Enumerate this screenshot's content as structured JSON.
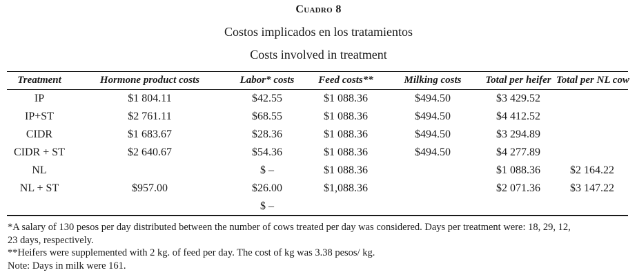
{
  "label": "Cuadro 8",
  "title_es": "Costos implicados en los tratamientos",
  "title_en": "Costs involved in treatment",
  "table": {
    "headers": [
      "Treatment",
      "Hormone product costs",
      "Labor* costs",
      "Feed costs**",
      "Milking costs",
      "Total per heifer",
      "Total per NL cow"
    ],
    "rows": [
      [
        "IP",
        "$1 804.11",
        "$42.55",
        "$1 088.36",
        "$494.50",
        "$3 429.52",
        ""
      ],
      [
        "IP+ST",
        "$2 761.11",
        "$68.55",
        "$1 088.36",
        "$494.50",
        "$4 412.52",
        ""
      ],
      [
        "CIDR",
        "$1 683.67",
        "$28.36",
        "$1 088.36",
        "$494.50",
        "$3 294.89",
        ""
      ],
      [
        "CIDR + ST",
        "$2 640.67",
        "$54.36",
        "$1 088.36",
        "$494.50",
        "$4 277.89",
        ""
      ],
      [
        "NL",
        "",
        "$ –",
        "$1 088.36",
        "",
        "$1 088.36",
        "$2 164.22"
      ],
      [
        "NL + ST",
        "$957.00",
        "$26.00",
        "$1,088.36",
        "",
        "$2 071.36",
        "$3 147.22"
      ],
      [
        "",
        "",
        "$ –",
        "",
        "",
        "",
        ""
      ]
    ]
  },
  "notes": [
    "*A salary of 130 pesos per day distributed between the number of cows treated per day was considered. Days per treatment were: 18, 29, 12,",
    "23 days, respectively.",
    "**Heifers were supplemented with 2 kg. of feed per day. The cost of kg was 3.38 pesos/ kg.",
    "Note: Days in milk were 161."
  ]
}
